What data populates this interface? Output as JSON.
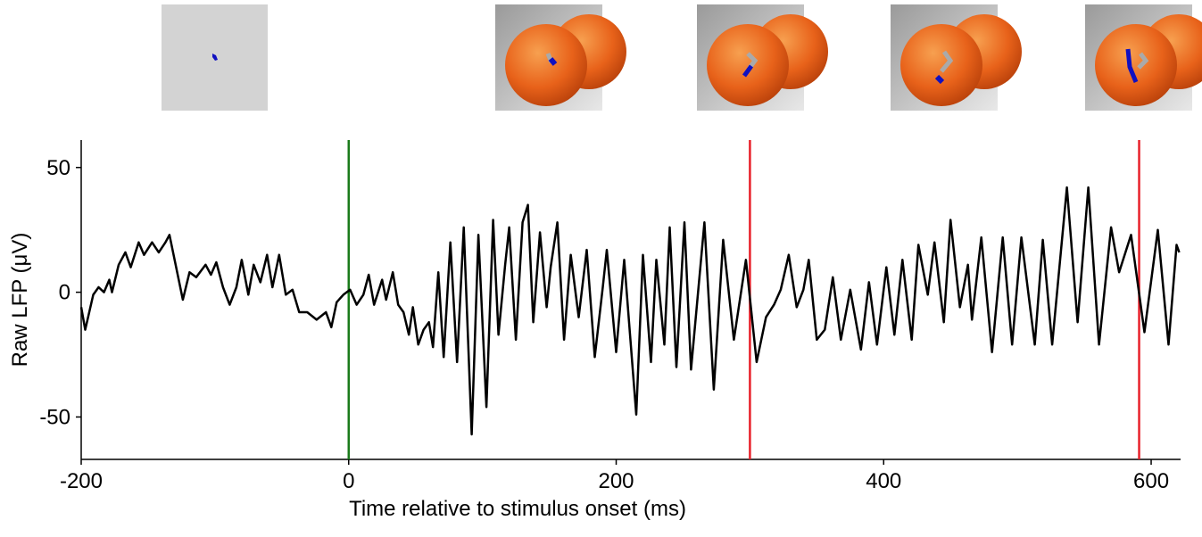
{
  "chart_data": {
    "type": "line",
    "x_label": "Time relative to stimulus onset (ms)",
    "y_label": "Raw LFP (μV)",
    "xlim": [
      -200,
      622
    ],
    "ylim": [
      -67,
      61
    ],
    "xticks": [
      -200,
      0,
      200,
      400,
      600
    ],
    "yticks": [
      -50,
      0,
      50
    ],
    "color": "#000000",
    "event_lines": [
      {
        "x": 0,
        "color": "#1a7a1a"
      },
      {
        "x": 300,
        "color": "#e8202a"
      },
      {
        "x": 591,
        "color": "#e8202a"
      }
    ],
    "x": [
      -200,
      -197,
      -191,
      -187,
      -183,
      -179,
      -177,
      -172,
      -167,
      -163,
      -157,
      -153,
      -147,
      -142,
      -137,
      -134,
      -129,
      -124,
      -119,
      -114,
      -107,
      -103,
      -99,
      -94,
      -89,
      -84,
      -80,
      -75,
      -71,
      -66,
      -61,
      -57,
      -52,
      -47,
      -42,
      -37,
      -31,
      -24,
      -17,
      -13,
      -9,
      -4,
      1,
      6,
      11,
      15,
      19,
      25,
      28,
      33,
      37,
      41,
      45,
      48,
      52,
      56,
      60,
      63,
      67,
      71,
      76,
      81,
      86,
      92,
      97,
      103,
      108,
      112,
      117,
      120,
      125,
      130,
      134,
      138,
      143,
      148,
      151,
      156,
      161,
      166,
      172,
      178,
      184,
      190,
      193,
      200,
      206,
      215,
      220,
      226,
      230,
      236,
      240,
      245,
      251,
      256,
      266,
      273,
      280,
      288,
      297,
      305,
      312,
      318,
      323,
      329,
      335,
      340,
      344,
      350,
      356,
      362,
      368,
      375,
      383,
      389,
      395,
      402,
      408,
      414,
      421,
      426,
      433,
      438,
      445,
      450,
      457,
      463,
      466,
      473,
      481,
      489,
      496,
      503,
      513,
      519,
      526,
      537,
      545,
      553,
      561,
      570,
      576,
      585,
      595,
      605,
      613,
      619,
      621
    ],
    "values": [
      -6,
      -15,
      -1,
      2,
      0,
      5,
      0,
      11,
      16,
      10,
      20,
      15,
      20,
      16,
      20,
      23,
      10,
      -3,
      8,
      6,
      11,
      7,
      12,
      2,
      -5,
      2,
      13,
      -1,
      11,
      4,
      15,
      2,
      15,
      -1,
      1,
      -8,
      -8,
      -11,
      -8,
      -14,
      -4,
      -1,
      1,
      -5,
      -1,
      7,
      -5,
      5,
      -3,
      8,
      -5,
      -8,
      -17,
      -6,
      -21,
      -15,
      -12,
      -22,
      8,
      -26,
      20,
      -28,
      26,
      -57,
      23,
      -46,
      29,
      -17,
      11,
      26,
      -19,
      28,
      35,
      -12,
      24,
      -6,
      10,
      28,
      -19,
      15,
      -10,
      17,
      -26,
      2,
      17,
      -24,
      13,
      -49,
      15,
      -28,
      13,
      -21,
      26,
      -30,
      28,
      -31,
      28,
      -39,
      21,
      -19,
      13,
      -28,
      -10,
      -5,
      1,
      15,
      -6,
      1,
      13,
      -19,
      -15,
      6,
      -19,
      1,
      -23,
      4,
      -21,
      10,
      -17,
      13,
      -19,
      19,
      -1,
      20,
      -12,
      29,
      -6,
      11,
      -11,
      22,
      -24,
      22,
      -21,
      22,
      -21,
      21,
      -21,
      42,
      -12,
      42,
      -21,
      26,
      8,
      23,
      -16,
      25,
      -21,
      19,
      16
    ]
  }
}
